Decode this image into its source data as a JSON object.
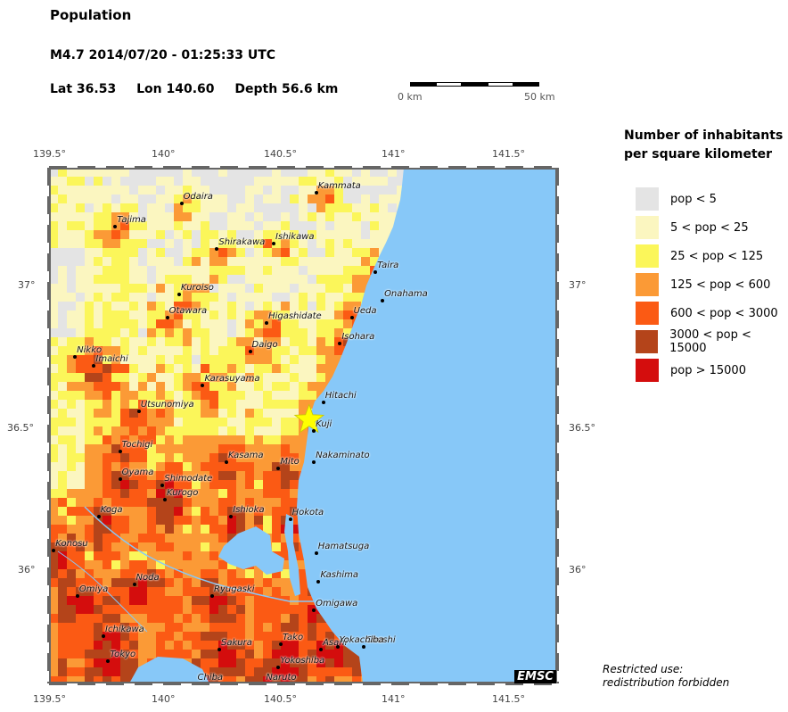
{
  "header": {
    "title": "Population",
    "event": "M4.7  2014/07/20 - 01:25:33 UTC",
    "lat": "Lat 36.53",
    "lon": "Lon 140.60",
    "depth": "Depth  56.6 km"
  },
  "scale_bar": {
    "start_label": "0 km",
    "end_label": "50 km"
  },
  "axes": {
    "lon_labels": [
      "139.5°",
      "140°",
      "140.5°",
      "141°",
      "141.5°"
    ],
    "lat_labels": [
      "37°",
      "36.5°",
      "36°"
    ]
  },
  "legend": {
    "title_line1": "Number of inhabitants",
    "title_line2": "per square kilometer",
    "items": [
      {
        "label": "pop < 5",
        "color": "#e4e4e4"
      },
      {
        "label": "5 < pop < 25",
        "color": "#fbf6c0"
      },
      {
        "label": "25 < pop < 125",
        "color": "#fbf65a"
      },
      {
        "label": "125 < pop < 600",
        "color": "#fb9a36"
      },
      {
        "label": "600 < pop < 3000",
        "color": "#fb5a14"
      },
      {
        "label": "3000 < pop < 15000",
        "color": "#b4441a"
      },
      {
        "label": "pop > 15000",
        "color": "#d40d0d"
      }
    ]
  },
  "colors": {
    "sea": "#87c8f8",
    "epicenter": "#ffff00"
  },
  "epicenter": {
    "lat": 36.53,
    "lon": 140.6
  },
  "cities": [
    {
      "name": "Kammata",
      "lon": 140.63,
      "lat": 37.33
    },
    {
      "name": "Odaira",
      "lon": 140.06,
      "lat": 37.29
    },
    {
      "name": "Tajima",
      "lon": 139.78,
      "lat": 37.21
    },
    {
      "name": "Shirakawa",
      "lon": 140.21,
      "lat": 37.13
    },
    {
      "name": "Ishikawa",
      "lon": 140.45,
      "lat": 37.15
    },
    {
      "name": "Taira",
      "lon": 140.88,
      "lat": 37.05
    },
    {
      "name": "Kuroiso",
      "lon": 140.05,
      "lat": 36.97
    },
    {
      "name": "Onahama",
      "lon": 140.91,
      "lat": 36.95
    },
    {
      "name": "Otawara",
      "lon": 140.0,
      "lat": 36.89
    },
    {
      "name": "Higashidate",
      "lon": 140.42,
      "lat": 36.87
    },
    {
      "name": "Ueda",
      "lon": 140.78,
      "lat": 36.89
    },
    {
      "name": "Isohara",
      "lon": 140.73,
      "lat": 36.8
    },
    {
      "name": "Daigo",
      "lon": 140.35,
      "lat": 36.77
    },
    {
      "name": "Nikko",
      "lon": 139.61,
      "lat": 36.75
    },
    {
      "name": "Imaichi",
      "lon": 139.69,
      "lat": 36.72
    },
    {
      "name": "Karasuyama",
      "lon": 140.15,
      "lat": 36.65
    },
    {
      "name": "Hitachi",
      "lon": 140.66,
      "lat": 36.59
    },
    {
      "name": "Utsunomiya",
      "lon": 139.88,
      "lat": 36.56
    },
    {
      "name": "Kuji",
      "lon": 140.62,
      "lat": 36.49
    },
    {
      "name": "Tochigi",
      "lon": 139.8,
      "lat": 36.42
    },
    {
      "name": "Nakaminato",
      "lon": 140.62,
      "lat": 36.38
    },
    {
      "name": "Kasama",
      "lon": 140.25,
      "lat": 36.38
    },
    {
      "name": "Mito",
      "lon": 140.47,
      "lat": 36.36
    },
    {
      "name": "Oyama",
      "lon": 139.8,
      "lat": 36.32
    },
    {
      "name": "Shimodate",
      "lon": 139.98,
      "lat": 36.3
    },
    {
      "name": "Kurogo",
      "lon": 139.99,
      "lat": 36.25
    },
    {
      "name": "Koga",
      "lon": 139.71,
      "lat": 36.19
    },
    {
      "name": "Ishioka",
      "lon": 140.27,
      "lat": 36.19
    },
    {
      "name": "Hokota",
      "lon": 140.52,
      "lat": 36.18
    },
    {
      "name": "Konosu",
      "lon": 139.52,
      "lat": 36.07
    },
    {
      "name": "Hamatsuga",
      "lon": 140.63,
      "lat": 36.06
    },
    {
      "name": "Kashima",
      "lon": 140.64,
      "lat": 35.96
    },
    {
      "name": "Noda",
      "lon": 139.86,
      "lat": 35.95
    },
    {
      "name": "Omiya",
      "lon": 139.62,
      "lat": 35.91
    },
    {
      "name": "Ryugaski",
      "lon": 140.19,
      "lat": 35.91
    },
    {
      "name": "Omigawa",
      "lon": 140.62,
      "lat": 35.86
    },
    {
      "name": "Ichikawa",
      "lon": 139.73,
      "lat": 35.77
    },
    {
      "name": "Tako",
      "lon": 140.48,
      "lat": 35.74
    },
    {
      "name": "Sakura",
      "lon": 140.22,
      "lat": 35.72
    },
    {
      "name": "Asahi",
      "lon": 140.65,
      "lat": 35.72
    },
    {
      "name": "Choshi",
      "lon": 140.83,
      "lat": 35.73
    },
    {
      "name": "Yokachiba",
      "lon": 140.72,
      "lat": 35.73
    },
    {
      "name": "Tokyo",
      "lon": 139.75,
      "lat": 35.68
    },
    {
      "name": "Yokoshiba",
      "lon": 140.47,
      "lat": 35.66
    },
    {
      "name": "Chiba",
      "lon": 140.12,
      "lat": 35.6
    },
    {
      "name": "Naruto",
      "lon": 140.41,
      "lat": 35.6
    }
  ],
  "footer": {
    "restricted_line1": "Restricted use:",
    "restricted_line2": "redistribution forbidden",
    "logo_text": "EMSC"
  }
}
